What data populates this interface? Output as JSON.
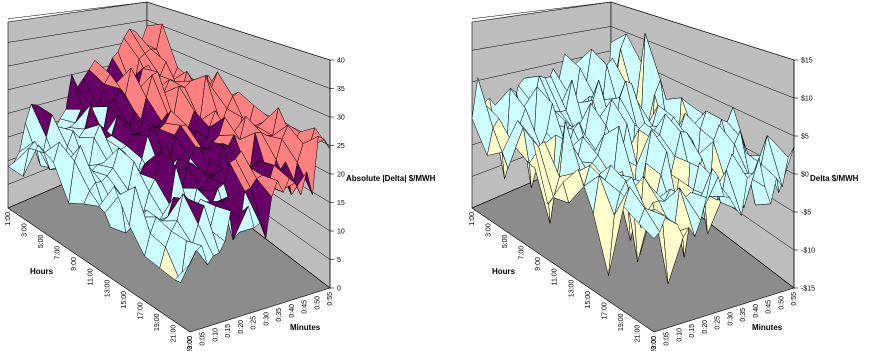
{
  "colors": {
    "wall": "#bdbdbd",
    "floor": "#8c8c8c",
    "band_0_10": "#ffffcc",
    "band_10_20": "#ccffff",
    "band_20_30": "#660066",
    "band_30_40": "#ff8080",
    "band_top": "#0066cc",
    "band_peak": "#ccccff",
    "edge": "#000000"
  },
  "chart_data": [
    {
      "type": "surface3d",
      "zlabel": "Absolute |Delta| $/MWH",
      "xlabel": "Minutes",
      "ylabel": "Hours",
      "zlim": [
        0,
        40
      ],
      "z_ticks": [
        "0",
        "5",
        "10",
        "15",
        "20",
        "25",
        "30",
        "35",
        "40"
      ],
      "x_ticks": [
        "0:00",
        "0:05",
        "0:10",
        "0:15",
        "0:20",
        "0:25",
        "0:30",
        "0:35",
        "0:40",
        "0:45",
        "0:50",
        "0:55"
      ],
      "y_ticks": [
        "1:00",
        "3:00",
        "5:00",
        "7:00",
        "9:00",
        "11:00",
        "13:00",
        "15:00",
        "17:00",
        "19:00",
        "21:00",
        "23:00"
      ],
      "bands": [
        {
          "range": [
            0,
            10
          ],
          "color": "#ffffcc"
        },
        {
          "range": [
            10,
            20
          ],
          "color": "#ccffff"
        },
        {
          "range": [
            20,
            25
          ],
          "color": "#660066"
        },
        {
          "range": [
            25,
            35
          ],
          "color": "#ff8080"
        },
        {
          "range": [
            35,
            40
          ],
          "color": "#0066cc"
        }
      ]
    },
    {
      "type": "surface3d",
      "zlabel": "Delta $/MWH",
      "xlabel": "Minutes",
      "ylabel": "Hours",
      "zlim": [
        -15,
        15
      ],
      "z_ticks": [
        "-$15",
        "-$10",
        "-$5",
        "$0",
        "$5",
        "$10",
        "$15"
      ],
      "x_ticks": [
        "0:00",
        "0:05",
        "0:10",
        "0:15",
        "0:20",
        "0:25",
        "0:30",
        "0:35",
        "0:40",
        "0:45",
        "0:50",
        "0:55"
      ],
      "y_ticks": [
        "1:00",
        "3:00",
        "5:00",
        "7:00",
        "9:00",
        "11:00",
        "13:00",
        "15:00",
        "17:00",
        "19:00",
        "21:00",
        "23:00"
      ],
      "bands": [
        {
          "range": [
            -15,
            -10
          ],
          "color": "#660066"
        },
        {
          "range": [
            -10,
            -5
          ],
          "color": "#993366"
        },
        {
          "range": [
            -5,
            0
          ],
          "color": "#ffffcc"
        },
        {
          "range": [
            0,
            10
          ],
          "color": "#ccffff"
        },
        {
          "range": [
            10,
            15
          ],
          "color": "#660066"
        }
      ]
    }
  ]
}
